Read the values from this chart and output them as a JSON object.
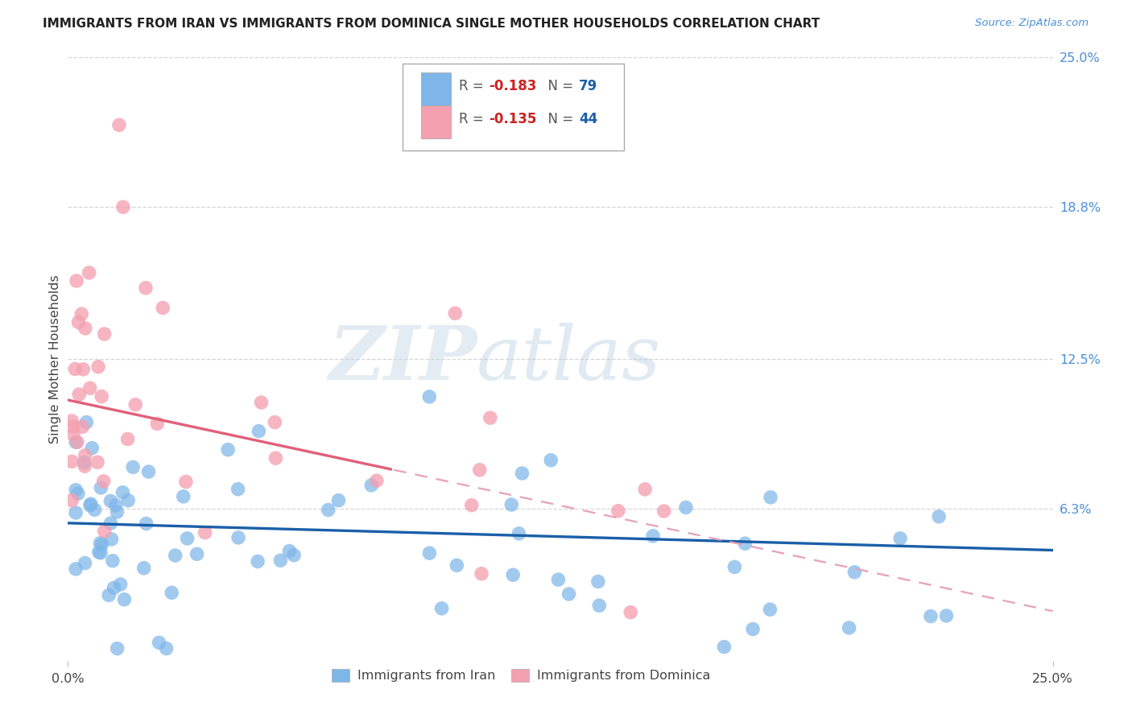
{
  "title": "IMMIGRANTS FROM IRAN VS IMMIGRANTS FROM DOMINICA SINGLE MOTHER HOUSEHOLDS CORRELATION CHART",
  "source": "Source: ZipAtlas.com",
  "ylabel": "Single Mother Households",
  "xlim": [
    0.0,
    0.25
  ],
  "ylim": [
    0.0,
    0.25
  ],
  "ytick_labels_right": [
    "25.0%",
    "18.8%",
    "12.5%",
    "6.3%"
  ],
  "ytick_positions_right": [
    0.25,
    0.188,
    0.125,
    0.063
  ],
  "grid_color": "#cccccc",
  "background_color": "#ffffff",
  "iran_color": "#7eb6e8",
  "dominica_color": "#f4a0b0",
  "iran_line_color": "#1a5fa8",
  "dominica_line_color": "#e0607a",
  "dominica_dash_color": "#e8a0b8",
  "R_iran": -0.183,
  "N_iran": 79,
  "R_dominica": -0.135,
  "N_dominica": 44,
  "watermark_zip": "ZIP",
  "watermark_atlas": "atlas",
  "legend_R_color": "#cc2222",
  "legend_N_color": "#1a5fa8",
  "legend_text_color": "#555555",
  "right_label_color": "#4a90d9",
  "title_color": "#222222",
  "source_color": "#4a90d9"
}
